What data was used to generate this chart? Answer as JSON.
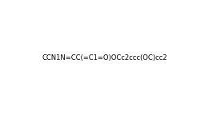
{
  "smiles": "CCN1N=CC(=C1=O)OCc2ccc(OC)cc2",
  "title": "",
  "background_color": "#ffffff",
  "line_color": "#000000",
  "figsize": [
    2.61,
    1.44
  ],
  "dpi": 100
}
